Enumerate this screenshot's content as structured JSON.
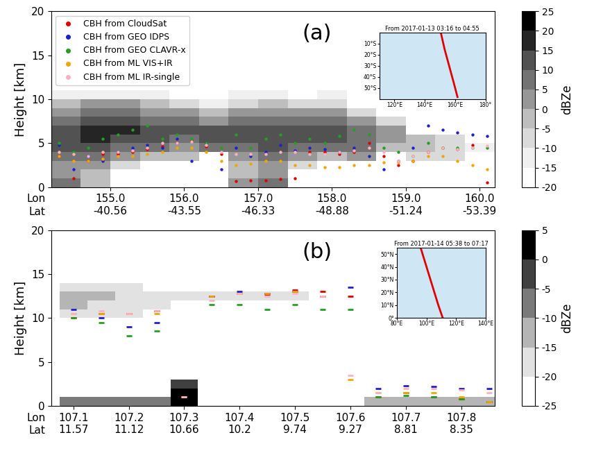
{
  "chart_data": [
    {
      "type": "scatter",
      "panel_label": "(a)",
      "ylabel": "Height [km]",
      "xlim": [
        154.2,
        160.2
      ],
      "ylim": [
        0,
        20
      ],
      "yticks": [
        0,
        5,
        10,
        15,
        20
      ],
      "xticks": [
        {
          "value": 155.0,
          "label": "155.0\n-40.56"
        },
        {
          "value": 156.0,
          "label": "156.0\n-43.55"
        },
        {
          "value": 157.0,
          "label": "157.0\n-46.33"
        },
        {
          "value": 158.0,
          "label": "158.0\n-48.88"
        },
        {
          "value": 159.0,
          "label": "159.0\n-51.24"
        },
        {
          "value": 160.0,
          "label": "160.0\n-53.39"
        }
      ],
      "axis_row_labels": [
        "Lon",
        "Lat"
      ],
      "grid": false,
      "legend": "upper left",
      "marker": "o",
      "x": [
        154.3,
        154.5,
        154.7,
        154.9,
        155.1,
        155.3,
        155.5,
        155.7,
        155.9,
        156.1,
        156.3,
        156.5,
        156.7,
        156.9,
        157.1,
        157.3,
        157.5,
        157.7,
        157.9,
        158.1,
        158.3,
        158.5,
        158.7,
        158.9,
        159.1,
        159.3,
        159.5,
        159.7,
        159.9,
        160.1
      ],
      "series": [
        {
          "name": "CBH from CloudSat",
          "color": "#e00000",
          "values": [
            3.5,
            1.0,
            3.0,
            3.8,
            3.8,
            4.0,
            4.3,
            4.6,
            5.0,
            5.3,
            4.6,
            3.8,
            0.7,
            0.8,
            0.8,
            0.9,
            1.0,
            4.0,
            4.0,
            3.8,
            4.0,
            5.0,
            3.5,
            2.5,
            3.0,
            4.0,
            4.5,
            4.3,
            4.8,
            0.5
          ]
        },
        {
          "name": "CBH from GEO IDPS",
          "color": "#1f1fd0",
          "values": [
            4.8,
            2.0,
            3.5,
            3.0,
            4.0,
            4.5,
            4.8,
            4.5,
            5.5,
            3.0,
            5.0,
            2.0,
            4.5,
            3.5,
            4.0,
            4.8,
            4.2,
            4.5,
            4.3,
            4.0,
            4.5,
            3.5,
            2.0,
            3.0,
            4.5,
            7.0,
            6.5,
            6.2,
            6.0,
            5.8
          ]
        },
        {
          "name": "CBH from GEO CLAVR-x",
          "color": "#22a022",
          "values": [
            5.0,
            4.0,
            4.5,
            5.5,
            6.0,
            6.5,
            7.0,
            5.5,
            6.0,
            5.5,
            5.0,
            4.5,
            6.0,
            4.5,
            5.5,
            6.0,
            5.0,
            5.5,
            5.0,
            5.8,
            6.5,
            6.0,
            4.5,
            4.0,
            3.5,
            5.0,
            4.5,
            4.5,
            4.5,
            4.5
          ]
        },
        {
          "name": "CBH from ML VIS+IR",
          "color": "#f0a800",
          "values": [
            3.5,
            3.0,
            3.0,
            3.2,
            3.5,
            3.5,
            3.8,
            4.0,
            4.5,
            4.5,
            4.0,
            3.0,
            2.5,
            2.7,
            3.0,
            3.0,
            2.5,
            2.5,
            2.3,
            2.3,
            2.5,
            2.5,
            2.8,
            2.8,
            3.0,
            3.5,
            3.5,
            3.0,
            2.5,
            2.0
          ]
        },
        {
          "name": "CBH from ML IR-single",
          "color": "#ffb0c0",
          "values": [
            4.0,
            3.8,
            3.5,
            4.0,
            4.0,
            4.2,
            4.5,
            5.0,
            5.0,
            5.2,
            4.8,
            4.0,
            3.8,
            3.8,
            3.8,
            4.0,
            4.0,
            3.8,
            3.8,
            4.0,
            4.2,
            4.5,
            4.0,
            3.0,
            3.5,
            4.0,
            4.5,
            4.3,
            4.5,
            4.7
          ]
        }
      ],
      "reflectivity": {
        "x": [
          154.4,
          154.8,
          155.2,
          155.6,
          156.0,
          156.4,
          156.8,
          157.2,
          157.6,
          158.0,
          158.4,
          158.8,
          159.2,
          159.6,
          160.0
        ],
        "y": [
          0.5,
          1.5,
          2.5,
          3.5,
          4.5,
          5.5,
          6.5,
          7.5,
          8.5,
          9.5,
          10.5
        ],
        "cells": [
          [
            5,
            -5,
            null,
            null,
            null,
            null,
            0,
            5,
            null,
            null,
            null,
            null,
            null,
            null,
            null
          ],
          [
            0,
            -5,
            null,
            null,
            null,
            null,
            -5,
            0,
            null,
            null,
            null,
            null,
            null,
            null,
            null
          ],
          [
            0,
            0,
            -10,
            null,
            null,
            null,
            -5,
            0,
            -10,
            null,
            null,
            null,
            null,
            null,
            null
          ],
          [
            5,
            5,
            0,
            -5,
            -5,
            null,
            0,
            5,
            0,
            -5,
            0,
            null,
            -10,
            -10,
            null
          ],
          [
            10,
            10,
            5,
            5,
            0,
            5,
            5,
            10,
            5,
            5,
            5,
            -5,
            -5,
            -10,
            -15
          ],
          [
            10,
            15,
            10,
            10,
            5,
            10,
            10,
            10,
            10,
            10,
            5,
            0,
            -5,
            -10,
            null
          ],
          [
            10,
            15,
            15,
            10,
            10,
            10,
            10,
            10,
            10,
            10,
            5,
            0,
            null,
            null,
            null
          ],
          [
            5,
            10,
            10,
            5,
            5,
            0,
            5,
            5,
            5,
            5,
            0,
            -10,
            null,
            null,
            null
          ],
          [
            0,
            5,
            5,
            0,
            0,
            -5,
            0,
            0,
            0,
            0,
            -10,
            null,
            null,
            null,
            null
          ],
          [
            -5,
            0,
            0,
            -5,
            -10,
            -15,
            -10,
            -5,
            -10,
            -10,
            null,
            null,
            null,
            null,
            null
          ],
          [
            -15,
            -15,
            -15,
            -15,
            null,
            null,
            -15,
            -15,
            null,
            -15,
            null,
            null,
            null,
            null,
            null
          ]
        ],
        "colorbar_label": "dBZe",
        "colorbar_lim": [
          -20,
          25
        ],
        "colorbar_ticks": [
          -20,
          -15,
          -10,
          -5,
          0,
          5,
          10,
          15,
          20,
          25
        ]
      },
      "inset": {
        "type": "line",
        "title": "From 2017-01-13 03:16 to 04:55",
        "color": "#e00000",
        "x": [
          150.5,
          153,
          156,
          159,
          161.5
        ],
        "values": [
          0,
          -15,
          -30,
          -45,
          -58
        ],
        "xlim": [
          110,
          180
        ],
        "ylim": [
          -60,
          0
        ],
        "xticks": [
          {
            "value": 120,
            "label": "120°E"
          },
          {
            "value": 140,
            "label": "140°E"
          },
          {
            "value": 160,
            "label": "160°E"
          },
          {
            "value": 180,
            "label": "180°"
          }
        ],
        "yticks": [
          {
            "value": -10,
            "label": "10°S"
          },
          {
            "value": -20,
            "label": "20°S"
          },
          {
            "value": -30,
            "label": "30°S"
          },
          {
            "value": -40,
            "label": "40°S"
          },
          {
            "value": -50,
            "label": "50°S"
          }
        ]
      }
    },
    {
      "type": "scatter",
      "panel_label": "(b)",
      "ylabel": "Height [km]",
      "xlim": [
        107.06,
        107.86
      ],
      "ylim": [
        0,
        20
      ],
      "yticks": [
        0,
        5,
        10,
        15,
        20
      ],
      "xticks": [
        {
          "value": 107.1,
          "label": "107.1\n11.57"
        },
        {
          "value": 107.2,
          "label": "107.2\n11.12"
        },
        {
          "value": 107.3,
          "label": "107.3\n10.66"
        },
        {
          "value": 107.4,
          "label": "107.4\n10.2"
        },
        {
          "value": 107.5,
          "label": "107.5\n9.74"
        },
        {
          "value": 107.6,
          "label": "107.6\n9.27"
        },
        {
          "value": 107.7,
          "label": "107.7\n8.81"
        },
        {
          "value": 107.8,
          "label": "107.8\n8.35"
        }
      ],
      "axis_row_labels": [
        "Lon",
        "Lat"
      ],
      "grid": false,
      "marker": "_",
      "x": [
        107.1,
        107.15,
        107.2,
        107.25,
        107.3,
        107.35,
        107.4,
        107.45,
        107.5,
        107.55,
        107.6,
        107.65,
        107.7,
        107.75,
        107.8,
        107.85
      ],
      "series": [
        {
          "name": "CBH from CloudSat",
          "color": "#e00000",
          "values": [
            10.0,
            10.5,
            10.5,
            10.8,
            null,
            12.5,
            12.8,
            12.7,
            13.2,
            13.0,
            12.5,
            1.0,
            1.5,
            1.0,
            0.8,
            0.5
          ]
        },
        {
          "name": "CBH from GEO IDPS",
          "color": "#1f1fd0",
          "values": [
            11.0,
            10.0,
            9.0,
            9.5,
            null,
            12.5,
            13.0,
            12.8,
            13.0,
            12.5,
            13.5,
            2.0,
            2.3,
            2.2,
            2.0,
            2.0
          ]
        },
        {
          "name": "CBH from GEO CLAVR-x",
          "color": "#22a022",
          "values": [
            10.0,
            9.5,
            8.0,
            8.5,
            null,
            11.5,
            11.5,
            11.0,
            11.5,
            11.0,
            11.0,
            1.0,
            1.2,
            1.0,
            0.8,
            0.5
          ]
        },
        {
          "name": "CBH from ML VIS+IR",
          "color": "#f0a800",
          "values": [
            10.5,
            10.5,
            10.5,
            10.5,
            1.0,
            12.5,
            12.8,
            12.8,
            13.0,
            12.5,
            3.0,
            1.5,
            1.5,
            1.5,
            1.0,
            0.5
          ]
        },
        {
          "name": "CBH from ML IR-single",
          "color": "#ffb0c0",
          "values": [
            10.5,
            10.8,
            10.5,
            10.8,
            1.0,
            12.0,
            12.8,
            12.5,
            12.8,
            12.5,
            3.5,
            1.5,
            2.0,
            2.0,
            1.8,
            1.5
          ]
        }
      ],
      "reflectivity": {
        "x": [
          107.1,
          107.15,
          107.2,
          107.25,
          107.3,
          107.35,
          107.4,
          107.45,
          107.5,
          107.55,
          107.6,
          107.65,
          107.7,
          107.75,
          107.8,
          107.85
        ],
        "y": [
          0.5,
          1.5,
          2.5,
          3.5,
          4.5,
          5.5,
          6.5,
          7.5,
          8.5,
          9.5,
          10.5,
          11.5,
          12.5,
          13.5
        ],
        "cells": [
          [
            -10,
            -10,
            -10,
            -10,
            0,
            null,
            null,
            null,
            null,
            null,
            null,
            -15,
            -15,
            -15,
            -15,
            -15
          ],
          [
            null,
            null,
            null,
            null,
            0,
            null,
            null,
            null,
            null,
            null,
            null,
            null,
            null,
            null,
            null,
            null
          ],
          [
            null,
            null,
            null,
            null,
            -5,
            null,
            null,
            null,
            null,
            null,
            null,
            null,
            null,
            null,
            null,
            null
          ],
          [
            null,
            null,
            null,
            null,
            null,
            null,
            null,
            null,
            null,
            null,
            null,
            null,
            null,
            null,
            null,
            null
          ],
          [
            null,
            null,
            null,
            null,
            null,
            null,
            null,
            null,
            null,
            null,
            null,
            null,
            null,
            null,
            null,
            null
          ],
          [
            null,
            null,
            null,
            null,
            null,
            null,
            null,
            null,
            null,
            null,
            null,
            null,
            null,
            null,
            null,
            null
          ],
          [
            null,
            null,
            null,
            null,
            null,
            null,
            null,
            null,
            null,
            null,
            null,
            null,
            null,
            null,
            null,
            null
          ],
          [
            null,
            null,
            null,
            null,
            null,
            null,
            null,
            null,
            null,
            null,
            null,
            null,
            null,
            null,
            null,
            null
          ],
          [
            null,
            null,
            null,
            null,
            null,
            null,
            null,
            null,
            null,
            null,
            null,
            null,
            null,
            null,
            null,
            null
          ],
          [
            null,
            null,
            null,
            null,
            null,
            null,
            null,
            null,
            null,
            null,
            null,
            null,
            null,
            null,
            null,
            null
          ],
          [
            -20,
            -20,
            -20,
            null,
            null,
            null,
            null,
            null,
            null,
            null,
            null,
            null,
            null,
            null,
            null,
            null
          ],
          [
            -15,
            -20,
            -20,
            -20,
            null,
            null,
            null,
            null,
            null,
            null,
            null,
            null,
            null,
            null,
            null,
            null
          ],
          [
            -15,
            -15,
            -20,
            -20,
            -20,
            -20,
            -20,
            -20,
            -20,
            null,
            null,
            null,
            null,
            null,
            null,
            null
          ],
          [
            -20,
            -20,
            -20,
            null,
            null,
            null,
            null,
            null,
            null,
            null,
            null,
            null,
            null,
            null,
            null,
            null
          ]
        ],
        "colorbar_label": "dBZe",
        "colorbar_lim": [
          -25,
          5
        ],
        "colorbar_ticks": [
          -25,
          -20,
          -15,
          -10,
          -5,
          0,
          5
        ]
      },
      "inset": {
        "type": "line",
        "title": "From 2017-01-14 05:38 to 07:17",
        "color": "#e00000",
        "x": [
          96,
          100,
          104,
          108,
          111
        ],
        "values": [
          55,
          40,
          25,
          10,
          0
        ],
        "xlim": [
          80,
          140
        ],
        "ylim": [
          0,
          55
        ],
        "xticks": [
          {
            "value": 80,
            "label": "80°E"
          },
          {
            "value": 100,
            "label": "100°E"
          },
          {
            "value": 120,
            "label": "120°E"
          },
          {
            "value": 140,
            "label": "140°E"
          }
        ],
        "yticks": [
          {
            "value": 0,
            "label": "0°"
          },
          {
            "value": 10,
            "label": "10°N"
          },
          {
            "value": 20,
            "label": "20°N"
          },
          {
            "value": 30,
            "label": "30°N"
          },
          {
            "value": 40,
            "label": "40°N"
          },
          {
            "value": 50,
            "label": "50°N"
          }
        ]
      }
    }
  ]
}
